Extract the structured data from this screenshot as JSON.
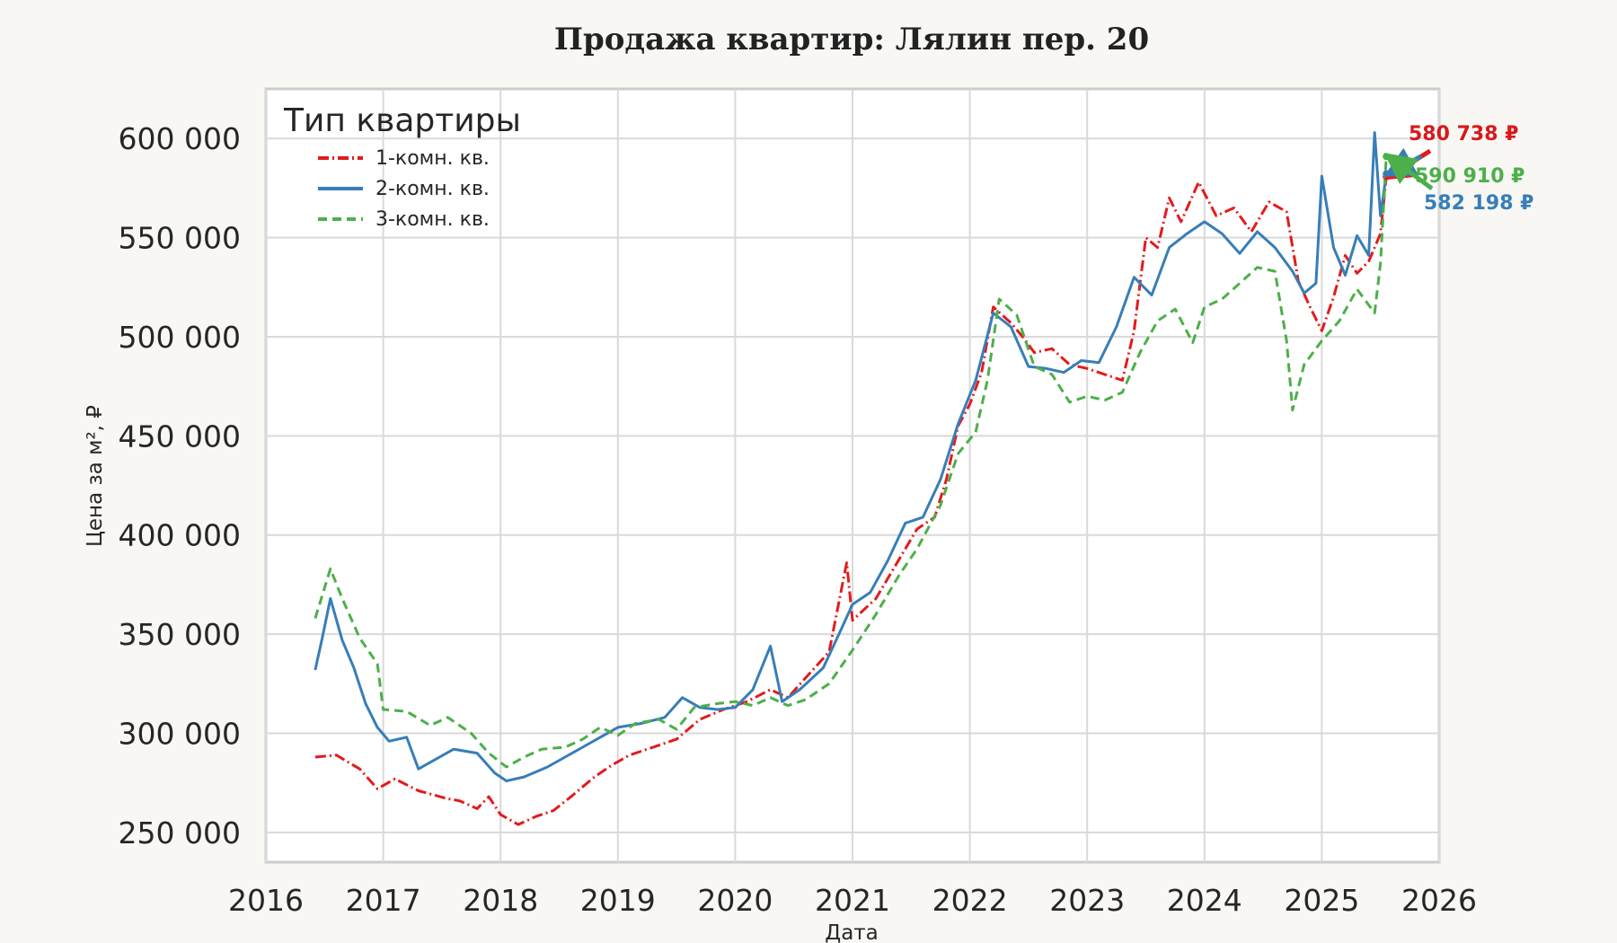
{
  "chart_data": {
    "type": "line",
    "title": "Продажа квартир: Лялин пер. 20",
    "xlabel": "Дата",
    "ylabel": "Цена за м², ₽",
    "xlim": [
      2016,
      2026
    ],
    "ylim": [
      235000,
      625000
    ],
    "x_ticks": [
      "2016",
      "2017",
      "2018",
      "2019",
      "2020",
      "2021",
      "2022",
      "2023",
      "2024",
      "2025",
      "2026"
    ],
    "y_ticks": [
      "250 000",
      "300 000",
      "350 000",
      "400 000",
      "450 000",
      "500 000",
      "550 000",
      "600 000"
    ],
    "grid": true,
    "legend": {
      "title": "Тип квартиры",
      "placement": "top-left"
    },
    "series": [
      {
        "name": "1-комн. кв.",
        "color": "#e41a1c",
        "style": "dashdot",
        "last_value_label": "580 738 ₽",
        "points": [
          [
            2016.42,
            288000
          ],
          [
            2016.6,
            289000
          ],
          [
            2016.8,
            282000
          ],
          [
            2016.95,
            272000
          ],
          [
            2017.1,
            277000
          ],
          [
            2017.3,
            271000
          ],
          [
            2017.55,
            267000
          ],
          [
            2017.65,
            266000
          ],
          [
            2017.8,
            262000
          ],
          [
            2017.9,
            268000
          ],
          [
            2018.0,
            259000
          ],
          [
            2018.15,
            254000
          ],
          [
            2018.3,
            258000
          ],
          [
            2018.45,
            261000
          ],
          [
            2018.6,
            268000
          ],
          [
            2018.8,
            278000
          ],
          [
            2018.95,
            284000
          ],
          [
            2019.1,
            289000
          ],
          [
            2019.3,
            293000
          ],
          [
            2019.5,
            297000
          ],
          [
            2019.7,
            307000
          ],
          [
            2019.9,
            312000
          ],
          [
            2020.1,
            316000
          ],
          [
            2020.3,
            322000
          ],
          [
            2020.45,
            318000
          ],
          [
            2020.6,
            328000
          ],
          [
            2020.8,
            341000
          ],
          [
            2020.95,
            386000
          ],
          [
            2021.0,
            357000
          ],
          [
            2021.2,
            368000
          ],
          [
            2021.4,
            388000
          ],
          [
            2021.55,
            403000
          ],
          [
            2021.7,
            409000
          ],
          [
            2021.8,
            428000
          ],
          [
            2021.9,
            455000
          ],
          [
            2022.0,
            466000
          ],
          [
            2022.1,
            482000
          ],
          [
            2022.2,
            515000
          ],
          [
            2022.35,
            507000
          ],
          [
            2022.45,
            500000
          ],
          [
            2022.55,
            492000
          ],
          [
            2022.7,
            494000
          ],
          [
            2022.85,
            486000
          ],
          [
            2023.0,
            484000
          ],
          [
            2023.15,
            481000
          ],
          [
            2023.3,
            478000
          ],
          [
            2023.4,
            503000
          ],
          [
            2023.5,
            550000
          ],
          [
            2023.6,
            545000
          ],
          [
            2023.7,
            570000
          ],
          [
            2023.8,
            558000
          ],
          [
            2023.95,
            578000
          ],
          [
            2024.1,
            561000
          ],
          [
            2024.25,
            565000
          ],
          [
            2024.4,
            553000
          ],
          [
            2024.55,
            568000
          ],
          [
            2024.7,
            563000
          ],
          [
            2024.8,
            528000
          ],
          [
            2024.9,
            515000
          ],
          [
            2025.0,
            503000
          ],
          [
            2025.1,
            520000
          ],
          [
            2025.2,
            541000
          ],
          [
            2025.3,
            532000
          ],
          [
            2025.4,
            538000
          ],
          [
            2025.5,
            552000
          ],
          [
            2025.55,
            580738
          ]
        ]
      },
      {
        "name": "2-комн. кв.",
        "color": "#377eb8",
        "style": "solid",
        "last_value_label": "582 198 ₽",
        "points": [
          [
            2016.42,
            332000
          ],
          [
            2016.48,
            348000
          ],
          [
            2016.55,
            368000
          ],
          [
            2016.65,
            347000
          ],
          [
            2016.75,
            333000
          ],
          [
            2016.85,
            315000
          ],
          [
            2016.95,
            303000
          ],
          [
            2017.05,
            296000
          ],
          [
            2017.2,
            298000
          ],
          [
            2017.3,
            282000
          ],
          [
            2017.45,
            287000
          ],
          [
            2017.6,
            292000
          ],
          [
            2017.8,
            290000
          ],
          [
            2017.95,
            280000
          ],
          [
            2018.05,
            276000
          ],
          [
            2018.2,
            278000
          ],
          [
            2018.4,
            283000
          ],
          [
            2018.55,
            288000
          ],
          [
            2018.7,
            293000
          ],
          [
            2018.85,
            298000
          ],
          [
            2019.0,
            303000
          ],
          [
            2019.2,
            305000
          ],
          [
            2019.4,
            308000
          ],
          [
            2019.55,
            318000
          ],
          [
            2019.7,
            313000
          ],
          [
            2019.85,
            312000
          ],
          [
            2020.0,
            313000
          ],
          [
            2020.15,
            322000
          ],
          [
            2020.3,
            344000
          ],
          [
            2020.4,
            316000
          ],
          [
            2020.55,
            322000
          ],
          [
            2020.75,
            333000
          ],
          [
            2020.9,
            352000
          ],
          [
            2021.0,
            365000
          ],
          [
            2021.15,
            371000
          ],
          [
            2021.3,
            387000
          ],
          [
            2021.45,
            406000
          ],
          [
            2021.6,
            409000
          ],
          [
            2021.75,
            428000
          ],
          [
            2021.9,
            456000
          ],
          [
            2022.05,
            478000
          ],
          [
            2022.2,
            512000
          ],
          [
            2022.35,
            505000
          ],
          [
            2022.5,
            485000
          ],
          [
            2022.65,
            484000
          ],
          [
            2022.8,
            482000
          ],
          [
            2022.95,
            488000
          ],
          [
            2023.1,
            487000
          ],
          [
            2023.25,
            505000
          ],
          [
            2023.4,
            530000
          ],
          [
            2023.55,
            521000
          ],
          [
            2023.7,
            545000
          ],
          [
            2023.85,
            552000
          ],
          [
            2024.0,
            558000
          ],
          [
            2024.15,
            552000
          ],
          [
            2024.3,
            542000
          ],
          [
            2024.45,
            553000
          ],
          [
            2024.6,
            545000
          ],
          [
            2024.75,
            533000
          ],
          [
            2024.85,
            522000
          ],
          [
            2024.95,
            527000
          ],
          [
            2025.0,
            581000
          ],
          [
            2025.1,
            545000
          ],
          [
            2025.2,
            531000
          ],
          [
            2025.3,
            551000
          ],
          [
            2025.4,
            541000
          ],
          [
            2025.45,
            603000
          ],
          [
            2025.5,
            561000
          ],
          [
            2025.55,
            582198
          ]
        ]
      },
      {
        "name": "3-комн. кв.",
        "color": "#4daf4a",
        "style": "dashed",
        "last_value_label": "590 910 ₽",
        "points": [
          [
            2016.42,
            358000
          ],
          [
            2016.55,
            383000
          ],
          [
            2016.65,
            368000
          ],
          [
            2016.8,
            348000
          ],
          [
            2016.95,
            335000
          ],
          [
            2017.0,
            312000
          ],
          [
            2017.2,
            311000
          ],
          [
            2017.4,
            304000
          ],
          [
            2017.55,
            308000
          ],
          [
            2017.75,
            300000
          ],
          [
            2017.9,
            290000
          ],
          [
            2018.05,
            283000
          ],
          [
            2018.2,
            288000
          ],
          [
            2018.35,
            292000
          ],
          [
            2018.55,
            293000
          ],
          [
            2018.7,
            297000
          ],
          [
            2018.85,
            303000
          ],
          [
            2019.0,
            299000
          ],
          [
            2019.15,
            305000
          ],
          [
            2019.35,
            307000
          ],
          [
            2019.5,
            302000
          ],
          [
            2019.65,
            313000
          ],
          [
            2019.85,
            315000
          ],
          [
            2020.0,
            316000
          ],
          [
            2020.15,
            314000
          ],
          [
            2020.3,
            318000
          ],
          [
            2020.45,
            314000
          ],
          [
            2020.6,
            317000
          ],
          [
            2020.8,
            325000
          ],
          [
            2021.0,
            342000
          ],
          [
            2021.2,
            360000
          ],
          [
            2021.4,
            380000
          ],
          [
            2021.55,
            393000
          ],
          [
            2021.75,
            415000
          ],
          [
            2021.9,
            441000
          ],
          [
            2022.05,
            452000
          ],
          [
            2022.15,
            478000
          ],
          [
            2022.25,
            519000
          ],
          [
            2022.4,
            511000
          ],
          [
            2022.55,
            485000
          ],
          [
            2022.7,
            481000
          ],
          [
            2022.85,
            467000
          ],
          [
            2023.0,
            470000
          ],
          [
            2023.15,
            468000
          ],
          [
            2023.3,
            472000
          ],
          [
            2023.45,
            492000
          ],
          [
            2023.6,
            508000
          ],
          [
            2023.75,
            514000
          ],
          [
            2023.9,
            497000
          ],
          [
            2024.0,
            515000
          ],
          [
            2024.15,
            519000
          ],
          [
            2024.3,
            527000
          ],
          [
            2024.45,
            535000
          ],
          [
            2024.6,
            533000
          ],
          [
            2024.7,
            498000
          ],
          [
            2024.75,
            463000
          ],
          [
            2024.85,
            486000
          ],
          [
            2025.0,
            498000
          ],
          [
            2025.15,
            508000
          ],
          [
            2025.3,
            524000
          ],
          [
            2025.45,
            512000
          ],
          [
            2025.5,
            537000
          ],
          [
            2025.55,
            590910
          ]
        ]
      }
    ]
  }
}
